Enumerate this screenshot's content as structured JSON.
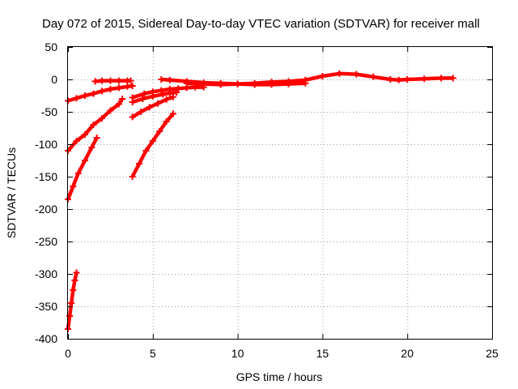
{
  "chart_data": {
    "type": "scatter",
    "title": "Day 072 of 2015, Sidereal Day-to-day VTEC variation (SDTVAR) for receiver mall",
    "xlabel": "GPS time / hours",
    "ylabel": "SDTVAR / TECUs",
    "xlim": [
      0,
      25
    ],
    "ylim": [
      -400,
      50
    ],
    "xticks": [
      0,
      5,
      10,
      15,
      20,
      25
    ],
    "yticks": [
      50,
      0,
      -50,
      -100,
      -150,
      -200,
      -250,
      -300,
      -350,
      -400
    ],
    "grid": true,
    "marker_color": "#ff0000",
    "series": [
      {
        "x": [
          0.0,
          0.1,
          0.2,
          0.3,
          0.4,
          0.5
        ],
        "y": [
          -385,
          -365,
          -345,
          -325,
          -310,
          -298
        ]
      },
      {
        "x": [
          0.0,
          0.3,
          0.6,
          1.0,
          1.4,
          1.7
        ],
        "y": [
          -185,
          -165,
          -145,
          -125,
          -105,
          -90
        ]
      },
      {
        "x": [
          0.0,
          0.5,
          1.0,
          1.5,
          2.0,
          2.5,
          3.0,
          3.2
        ],
        "y": [
          -110,
          -95,
          -85,
          -70,
          -60,
          -48,
          -38,
          -30
        ]
      },
      {
        "x": [
          0.0,
          0.5,
          1.0,
          1.5,
          2.0,
          2.5,
          3.0,
          3.5,
          3.8
        ],
        "y": [
          -33,
          -29,
          -25,
          -22,
          -18,
          -15,
          -13,
          -11,
          -10
        ]
      },
      {
        "x": [
          1.6,
          2.0,
          2.5,
          3.0,
          3.5,
          3.7
        ],
        "y": [
          -3,
          -2,
          -2,
          -2,
          -2,
          -2
        ]
      },
      {
        "x": [
          3.8,
          4.2,
          4.6,
          5.0,
          5.4,
          5.8,
          6.2
        ],
        "y": [
          -150,
          -130,
          -110,
          -95,
          -80,
          -65,
          -53
        ]
      },
      {
        "x": [
          3.8,
          4.3,
          4.8,
          5.3,
          5.8,
          6.2
        ],
        "y": [
          -58,
          -50,
          -43,
          -37,
          -31,
          -27
        ]
      },
      {
        "x": [
          3.8,
          4.4,
          5.0,
          5.6,
          6.0,
          6.4
        ],
        "y": [
          -35,
          -30,
          -26,
          -23,
          -21,
          -20
        ]
      },
      {
        "x": [
          3.8,
          4.5,
          5.0,
          5.5,
          6.0,
          6.5,
          7.0,
          7.5,
          8.0
        ],
        "y": [
          -28,
          -22,
          -19,
          -17,
          -15,
          -14,
          -13,
          -12,
          -12
        ]
      },
      {
        "x": [
          5.5,
          6.0,
          7.0,
          8.0,
          9.0,
          10.0,
          11.0,
          12.0,
          13.0,
          14.0
        ],
        "y": [
          0,
          -1,
          -3,
          -5,
          -6,
          -7,
          -8,
          -8,
          -7,
          -6
        ]
      },
      {
        "x": [
          7.0,
          8.0,
          9.0,
          10.0,
          11.0,
          12.0,
          13.0,
          14.0,
          15.0,
          16.0,
          17.0,
          18.0,
          19.0,
          19.5,
          20.0,
          21.0,
          22.0,
          22.7
        ],
        "y": [
          -6,
          -7,
          -8,
          -7,
          -6,
          -4,
          -3,
          -1,
          5,
          9,
          8,
          4,
          0,
          -1,
          0,
          1,
          2,
          2
        ]
      }
    ]
  }
}
